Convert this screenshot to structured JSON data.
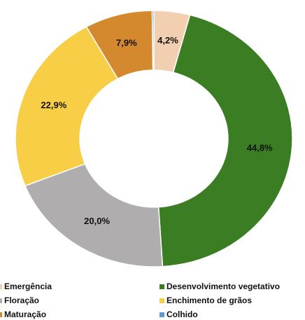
{
  "chart_data": {
    "type": "donut",
    "categories": [
      "Emergência",
      "Desenvolvimento vegetativo",
      "Floração",
      "Enchimento de grãos",
      "Maturação",
      "Colhido"
    ],
    "values": [
      4.2,
      44.8,
      20.0,
      22.9,
      7.9,
      0.2
    ],
    "value_labels": [
      "4,2%",
      "44,8%",
      "20,0%",
      "22,9%",
      "7,9%",
      null
    ],
    "colors": [
      "#f2cfb0",
      "#3b7d23",
      "#afadad",
      "#f7ce46",
      "#d4892f",
      "#5b9bd5"
    ]
  }
}
